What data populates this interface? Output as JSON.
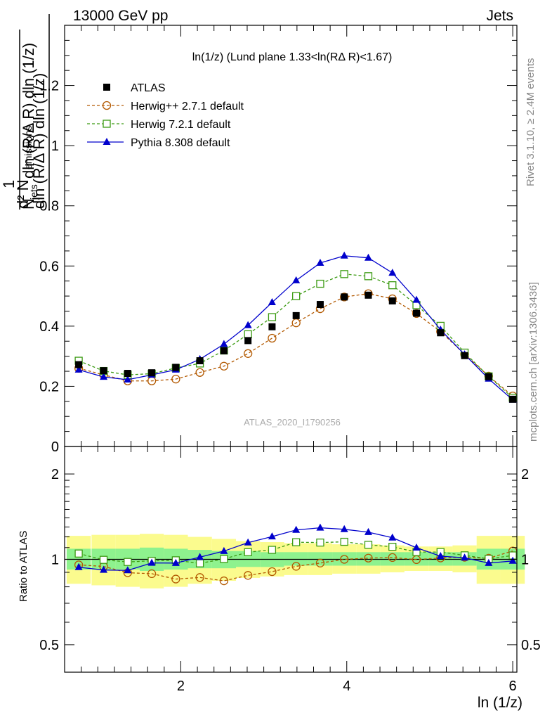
{
  "header": {
    "left": "13000 GeV pp",
    "right": "Jets"
  },
  "side_labels": {
    "rivet": "Rivet 3.1.10, ≥ 2.4M events",
    "mcplots": "mcplots.cern.ch [arXiv:1306.3436]"
  },
  "watermark": "ATLAS_2020_I1790256",
  "colors": {
    "atlas": "#000000",
    "herwigpp": "#b35900",
    "herwig7": "#3c9b13",
    "pythia": "#0000cc",
    "band_stat": "#8ef28e",
    "band_total": "#fbfb8e"
  },
  "chart_data": [
    {
      "type": "line",
      "title": "ln(1/z) (Lund plane 1.33<ln(RΔ R)<1.67)",
      "xlabel": "ln (1/z)",
      "ylabel": "1/N_jets d²N_emissions / dln(R/ΔR) dln(1/z)",
      "xlim": [
        0.6,
        6.05
      ],
      "ylim": [
        0,
        1.4
      ],
      "yticks": [
        "0",
        "0.2",
        "0.4",
        "0.6",
        "0.8",
        "1",
        "1.2"
      ],
      "legend_position": "top-left",
      "x": [
        0.77,
        1.07,
        1.36,
        1.65,
        1.94,
        2.23,
        2.52,
        2.81,
        3.1,
        3.39,
        3.68,
        3.97,
        4.26,
        4.55,
        4.84,
        5.13,
        5.42,
        5.71,
        6.0
      ],
      "series": [
        {
          "name": "ATLAS",
          "marker": "square",
          "values": [
            0.272,
            0.252,
            0.243,
            0.245,
            0.263,
            0.285,
            0.318,
            0.352,
            0.398,
            0.435,
            0.472,
            0.497,
            0.503,
            0.484,
            0.443,
            0.378,
            0.302,
            0.232,
            0.157
          ]
        },
        {
          "name": "Herwig++ 2.7.1 default",
          "marker": "open-circle",
          "dash": true,
          "values": [
            0.26,
            0.238,
            0.218,
            0.218,
            0.224,
            0.246,
            0.267,
            0.309,
            0.36,
            0.411,
            0.458,
            0.497,
            0.508,
            0.491,
            0.442,
            0.382,
            0.307,
            0.234,
            0.168
          ]
        },
        {
          "name": "Herwig 7.2.1 default",
          "marker": "open-square",
          "dash": true,
          "values": [
            0.285,
            0.251,
            0.238,
            0.242,
            0.261,
            0.276,
            0.319,
            0.373,
            0.43,
            0.5,
            0.541,
            0.573,
            0.566,
            0.536,
            0.47,
            0.401,
            0.312,
            0.233,
            0.162
          ]
        },
        {
          "name": "Pythia 8.308 default",
          "marker": "triangle",
          "dash": false,
          "values": [
            0.255,
            0.231,
            0.222,
            0.238,
            0.255,
            0.29,
            0.34,
            0.403,
            0.479,
            0.552,
            0.61,
            0.634,
            0.627,
            0.577,
            0.487,
            0.388,
            0.306,
            0.225,
            0.155
          ]
        }
      ]
    },
    {
      "type": "line",
      "ylabel": "Ratio to ATLAS",
      "ylim": [
        0.4,
        2.5
      ],
      "yticks": [
        "0.5",
        "1",
        "2"
      ],
      "xticks": [
        "2",
        "4",
        "6"
      ],
      "xlabel": "ln (1/z)",
      "x": [
        0.77,
        1.07,
        1.36,
        1.65,
        1.94,
        2.23,
        2.52,
        2.81,
        3.1,
        3.39,
        3.68,
        3.97,
        4.26,
        4.55,
        4.84,
        5.13,
        5.42,
        5.71,
        6.0
      ],
      "bands": {
        "stat": [
          [
            0.92,
            1.09
          ],
          [
            0.92,
            1.09
          ],
          [
            0.92,
            1.09
          ],
          [
            0.91,
            1.1
          ],
          [
            0.92,
            1.09
          ],
          [
            0.93,
            1.08
          ],
          [
            0.93,
            1.07
          ],
          [
            0.94,
            1.07
          ],
          [
            0.94,
            1.06
          ],
          [
            0.95,
            1.06
          ],
          [
            0.95,
            1.06
          ],
          [
            0.95,
            1.06
          ],
          [
            0.95,
            1.06
          ],
          [
            0.95,
            1.06
          ],
          [
            0.95,
            1.06
          ],
          [
            0.95,
            1.06
          ],
          [
            0.95,
            1.06
          ],
          [
            0.92,
            1.09
          ],
          [
            0.92,
            1.09
          ]
        ],
        "total": [
          [
            0.82,
            1.21
          ],
          [
            0.81,
            1.22
          ],
          [
            0.8,
            1.22
          ],
          [
            0.79,
            1.23
          ],
          [
            0.8,
            1.22
          ],
          [
            0.82,
            1.2
          ],
          [
            0.84,
            1.18
          ],
          [
            0.86,
            1.16
          ],
          [
            0.87,
            1.15
          ],
          [
            0.88,
            1.14
          ],
          [
            0.88,
            1.14
          ],
          [
            0.89,
            1.13
          ],
          [
            0.89,
            1.13
          ],
          [
            0.9,
            1.12
          ],
          [
            0.91,
            1.11
          ],
          [
            0.91,
            1.11
          ],
          [
            0.9,
            1.12
          ],
          [
            0.82,
            1.21
          ],
          [
            0.82,
            1.21
          ]
        ]
      },
      "series": [
        {
          "name": "Herwig++ 2.7.1 default",
          "values": [
            0.956,
            0.944,
            0.897,
            0.89,
            0.852,
            0.863,
            0.84,
            0.878,
            0.905,
            0.945,
            0.97,
            1.0,
            1.01,
            1.015,
            0.998,
            1.011,
            1.017,
            1.009,
            1.07
          ]
        },
        {
          "name": "Herwig 7.2.1 default",
          "values": [
            1.048,
            0.996,
            0.979,
            0.988,
            0.992,
            0.968,
            1.003,
            1.06,
            1.08,
            1.149,
            1.146,
            1.153,
            1.125,
            1.107,
            1.061,
            1.061,
            1.033,
            1.004,
            1.032
          ]
        },
        {
          "name": "Pythia 8.308 default",
          "values": [
            0.938,
            0.917,
            0.914,
            0.971,
            0.97,
            1.018,
            1.069,
            1.145,
            1.203,
            1.269,
            1.292,
            1.276,
            1.247,
            1.192,
            1.099,
            1.026,
            1.013,
            0.97,
            0.987
          ]
        }
      ]
    }
  ]
}
